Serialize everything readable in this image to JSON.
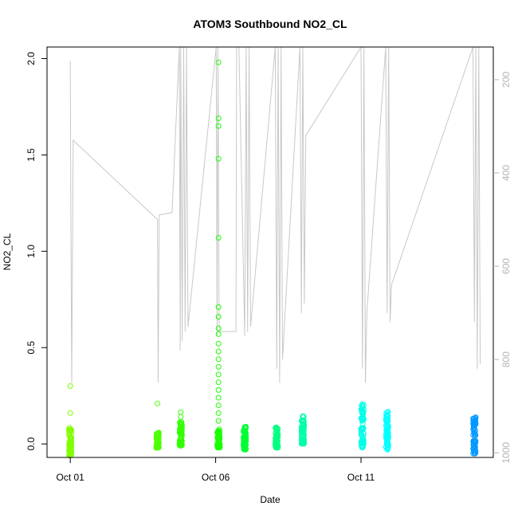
{
  "chart_data": {
    "type": "scatter",
    "title": "ATOM3 Southbound NO2_CL",
    "xlabel": "Date",
    "ylabel": "NO2_CL",
    "x_tick_labels": [
      "Oct 01",
      "Oct 06",
      "Oct 11"
    ],
    "x_tick_days": [
      1,
      6,
      11
    ],
    "xlim_days": [
      0.2,
      15.55
    ],
    "ylim": [
      -0.07,
      2.06
    ],
    "y_ticks": [
      0.0,
      0.5,
      1.0,
      1.5,
      2.0
    ],
    "y_tick_labels": [
      "0.0",
      "0.5",
      "1.0",
      "1.5",
      "2.0"
    ],
    "y2_ticks": [
      200,
      400,
      600,
      800,
      1000
    ],
    "y2_tick_labels": [
      "200",
      "400",
      "600",
      "800",
      "1000"
    ],
    "y2lim_reversed": [
      1010,
      130
    ],
    "grid": false,
    "legend": "none",
    "point_clusters": [
      {
        "day": 1.0,
        "color": "#80ff00",
        "y_low": -0.06,
        "y_high": 0.09,
        "outliers": [
          0.3,
          0.16
        ]
      },
      {
        "day": 4.0,
        "color": "#4dff00",
        "y_low": -0.02,
        "y_high": 0.06,
        "outliers": [
          0.21
        ]
      },
      {
        "day": 4.8,
        "color": "#33ff00",
        "y_low": -0.01,
        "y_high": 0.12,
        "outliers": [
          0.165,
          0.14
        ]
      },
      {
        "day": 6.1,
        "color": "#1aff00",
        "y_low": -0.02,
        "y_high": 0.08,
        "outliers": [
          1.98,
          1.69,
          1.65,
          1.48,
          1.07,
          0.71,
          0.66,
          0.6,
          0.57,
          0.52,
          0.48,
          0.44,
          0.4,
          0.36,
          0.32,
          0.28,
          0.24,
          0.2,
          0.16,
          0.12
        ]
      },
      {
        "day": 7.0,
        "color": "#00ff33",
        "y_low": -0.03,
        "y_high": 0.09,
        "outliers": []
      },
      {
        "day": 8.1,
        "color": "#00ff80",
        "y_low": -0.02,
        "y_high": 0.09,
        "outliers": []
      },
      {
        "day": 9.0,
        "color": "#00ffa6",
        "y_low": 0.0,
        "y_high": 0.15,
        "outliers": []
      },
      {
        "day": 11.05,
        "color": "#00ffe6",
        "y_low": -0.02,
        "y_high": 0.21,
        "outliers": []
      },
      {
        "day": 11.9,
        "color": "#00ffff",
        "y_low": -0.03,
        "y_high": 0.17,
        "outliers": []
      },
      {
        "day": 14.9,
        "color": "#0099ff",
        "y_low": -0.05,
        "y_high": 0.14,
        "outliers": []
      }
    ],
    "depth_track_color": "#c8c8c8",
    "depth_track": [
      [
        1.0,
        160
      ],
      [
        1.02,
        480
      ],
      [
        1.05,
        850
      ],
      [
        1.1,
        330
      ],
      [
        4.0,
        500
      ],
      [
        4.02,
        850
      ],
      [
        4.06,
        490
      ],
      [
        4.5,
        485
      ],
      [
        4.75,
        130
      ],
      [
        4.78,
        780
      ],
      [
        4.8,
        130
      ],
      [
        4.85,
        760
      ],
      [
        4.9,
        130
      ],
      [
        4.95,
        740
      ],
      [
        5.0,
        130
      ],
      [
        5.05,
        730
      ],
      [
        6.02,
        130
      ],
      [
        6.05,
        750
      ],
      [
        6.08,
        130
      ],
      [
        6.12,
        740
      ],
      [
        6.7,
        740
      ],
      [
        6.72,
        130
      ],
      [
        6.8,
        130
      ],
      [
        7.0,
        750
      ],
      [
        7.05,
        130
      ],
      [
        7.1,
        740
      ],
      [
        7.15,
        130
      ],
      [
        7.2,
        730
      ],
      [
        8.05,
        130
      ],
      [
        8.1,
        820
      ],
      [
        8.15,
        130
      ],
      [
        8.2,
        850
      ],
      [
        8.25,
        130
      ],
      [
        8.3,
        800
      ],
      [
        8.9,
        130
      ],
      [
        8.95,
        700
      ],
      [
        9.0,
        130
      ],
      [
        9.05,
        680
      ],
      [
        9.1,
        320
      ],
      [
        11.0,
        130
      ],
      [
        11.05,
        820
      ],
      [
        11.1,
        130
      ],
      [
        11.15,
        850
      ],
      [
        11.2,
        700
      ],
      [
        11.85,
        130
      ],
      [
        11.9,
        700
      ],
      [
        11.95,
        130
      ],
      [
        12.0,
        720
      ],
      [
        12.05,
        640
      ],
      [
        14.85,
        130
      ],
      [
        14.9,
        720
      ],
      [
        14.95,
        130
      ],
      [
        15.0,
        820
      ],
      [
        15.05,
        130
      ],
      [
        15.1,
        810
      ]
    ]
  }
}
